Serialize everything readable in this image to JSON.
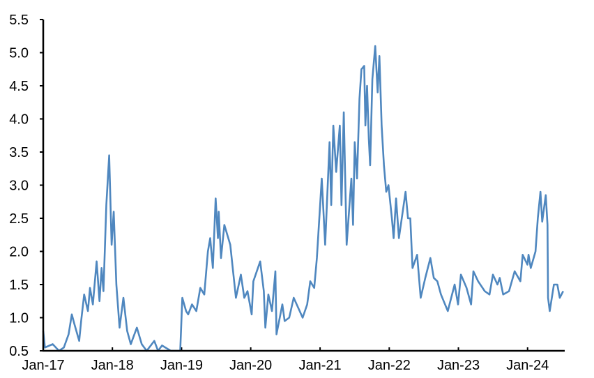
{
  "chart_data": {
    "type": "line",
    "title": "",
    "xlabel": "",
    "ylabel": "",
    "ylim": [
      0.5,
      5.5
    ],
    "xlim": [
      "2017-01-01",
      "2024-07-15"
    ],
    "grid": false,
    "legend": "none",
    "yticks": [
      "0.5",
      "1.0",
      "1.5",
      "2.0",
      "2.5",
      "3.0",
      "3.5",
      "4.0",
      "4.5",
      "5.0",
      "5.5"
    ],
    "xticks": [
      {
        "date": "2017-01-01",
        "label": "Jan-17"
      },
      {
        "date": "2018-01-01",
        "label": "Jan-18"
      },
      {
        "date": "2019-01-01",
        "label": "Jan-19"
      },
      {
        "date": "2020-01-01",
        "label": "Jan-20"
      },
      {
        "date": "2021-01-01",
        "label": "Jan-21"
      },
      {
        "date": "2022-01-01",
        "label": "Jan-22"
      },
      {
        "date": "2023-01-01",
        "label": "Jan-23"
      },
      {
        "date": "2024-01-01",
        "label": "Jan-24"
      }
    ],
    "colors": {
      "series": "#4f87bf",
      "axis": "#000000"
    },
    "series": [
      {
        "points": [
          [
            "2017-01-01",
            0.8
          ],
          [
            "2017-01-10",
            0.55
          ],
          [
            "2017-02-20",
            0.6
          ],
          [
            "2017-03-25",
            0.5
          ],
          [
            "2017-04-20",
            0.55
          ],
          [
            "2017-05-15",
            0.75
          ],
          [
            "2017-06-01",
            1.05
          ],
          [
            "2017-06-15",
            0.9
          ],
          [
            "2017-07-10",
            0.65
          ],
          [
            "2017-07-20",
            0.95
          ],
          [
            "2017-08-05",
            1.35
          ],
          [
            "2017-08-25",
            1.1
          ],
          [
            "2017-09-05",
            1.45
          ],
          [
            "2017-09-20",
            1.2
          ],
          [
            "2017-10-10",
            1.85
          ],
          [
            "2017-10-25",
            1.25
          ],
          [
            "2017-11-05",
            1.75
          ],
          [
            "2017-11-15",
            1.4
          ],
          [
            "2017-11-30",
            2.7
          ],
          [
            "2017-12-15",
            3.45
          ],
          [
            "2017-12-28",
            2.1
          ],
          [
            "2018-01-08",
            2.6
          ],
          [
            "2018-01-22",
            1.5
          ],
          [
            "2018-02-08",
            0.85
          ],
          [
            "2018-02-28",
            1.3
          ],
          [
            "2018-03-20",
            0.8
          ],
          [
            "2018-04-08",
            0.6
          ],
          [
            "2018-05-10",
            0.85
          ],
          [
            "2018-06-05",
            0.6
          ],
          [
            "2018-07-01",
            0.5
          ],
          [
            "2018-08-10",
            0.65
          ],
          [
            "2018-08-30",
            0.5
          ],
          [
            "2018-09-20",
            0.58
          ],
          [
            "2018-11-05",
            0.5
          ],
          [
            "2018-12-25",
            0.5
          ],
          [
            "2019-01-05",
            1.3
          ],
          [
            "2019-01-25",
            1.1
          ],
          [
            "2019-02-05",
            1.05
          ],
          [
            "2019-02-25",
            1.2
          ],
          [
            "2019-03-20",
            1.1
          ],
          [
            "2019-04-10",
            1.45
          ],
          [
            "2019-05-01",
            1.35
          ],
          [
            "2019-05-20",
            2.0
          ],
          [
            "2019-06-01",
            2.2
          ],
          [
            "2019-06-15",
            1.75
          ],
          [
            "2019-06-30",
            2.8
          ],
          [
            "2019-07-12",
            2.2
          ],
          [
            "2019-07-16",
            2.6
          ],
          [
            "2019-07-28",
            1.9
          ],
          [
            "2019-08-15",
            2.4
          ],
          [
            "2019-09-15",
            2.1
          ],
          [
            "2019-09-28",
            1.75
          ],
          [
            "2019-10-15",
            1.3
          ],
          [
            "2019-11-10",
            1.65
          ],
          [
            "2019-11-28",
            1.3
          ],
          [
            "2019-12-15",
            1.4
          ],
          [
            "2020-01-06",
            1.05
          ],
          [
            "2020-01-15",
            1.55
          ],
          [
            "2020-02-20",
            1.85
          ],
          [
            "2020-03-10",
            1.4
          ],
          [
            "2020-03-18",
            0.85
          ],
          [
            "2020-04-03",
            1.35
          ],
          [
            "2020-04-22",
            1.1
          ],
          [
            "2020-05-10",
            1.7
          ],
          [
            "2020-05-16",
            0.75
          ],
          [
            "2020-06-16",
            1.2
          ],
          [
            "2020-06-28",
            0.95
          ],
          [
            "2020-07-22",
            1.0
          ],
          [
            "2020-08-15",
            1.3
          ],
          [
            "2020-10-01",
            1.0
          ],
          [
            "2020-10-25",
            1.2
          ],
          [
            "2020-11-10",
            1.55
          ],
          [
            "2020-12-01",
            1.45
          ],
          [
            "2020-12-15",
            1.9
          ],
          [
            "2021-01-10",
            3.1
          ],
          [
            "2021-01-28",
            2.1
          ],
          [
            "2021-02-20",
            3.65
          ],
          [
            "2021-03-01",
            2.7
          ],
          [
            "2021-03-12",
            3.9
          ],
          [
            "2021-03-27",
            3.2
          ],
          [
            "2021-04-15",
            3.9
          ],
          [
            "2021-04-24",
            2.7
          ],
          [
            "2021-05-06",
            4.1
          ],
          [
            "2021-05-21",
            2.1
          ],
          [
            "2021-06-15",
            3.1
          ],
          [
            "2021-06-24",
            2.4
          ],
          [
            "2021-07-03",
            3.65
          ],
          [
            "2021-07-15",
            3.1
          ],
          [
            "2021-07-28",
            4.3
          ],
          [
            "2021-08-07",
            4.75
          ],
          [
            "2021-08-22",
            4.8
          ],
          [
            "2021-08-28",
            3.9
          ],
          [
            "2021-09-06",
            4.5
          ],
          [
            "2021-09-15",
            3.7
          ],
          [
            "2021-09-22",
            3.3
          ],
          [
            "2021-10-04",
            4.6
          ],
          [
            "2021-10-19",
            5.1
          ],
          [
            "2021-11-01",
            4.4
          ],
          [
            "2021-11-10",
            4.95
          ],
          [
            "2021-11-22",
            3.9
          ],
          [
            "2021-12-04",
            3.3
          ],
          [
            "2021-12-16",
            2.9
          ],
          [
            "2021-12-28",
            3.0
          ],
          [
            "2022-01-15",
            2.5
          ],
          [
            "2022-01-24",
            2.2
          ],
          [
            "2022-02-06",
            2.8
          ],
          [
            "2022-02-21",
            2.2
          ],
          [
            "2022-03-28",
            2.9
          ],
          [
            "2022-04-10",
            2.5
          ],
          [
            "2022-04-22",
            2.5
          ],
          [
            "2022-05-04",
            1.75
          ],
          [
            "2022-05-28",
            1.95
          ],
          [
            "2022-06-16",
            1.3
          ],
          [
            "2022-07-10",
            1.6
          ],
          [
            "2022-08-06",
            1.9
          ],
          [
            "2022-08-24",
            1.6
          ],
          [
            "2022-09-12",
            1.55
          ],
          [
            "2022-10-01",
            1.35
          ],
          [
            "2022-11-06",
            1.1
          ],
          [
            "2022-12-12",
            1.5
          ],
          [
            "2022-12-30",
            1.2
          ],
          [
            "2023-01-14",
            1.65
          ],
          [
            "2023-02-13",
            1.45
          ],
          [
            "2023-03-09",
            1.2
          ],
          [
            "2023-03-21",
            1.7
          ],
          [
            "2023-04-15",
            1.55
          ],
          [
            "2023-05-20",
            1.4
          ],
          [
            "2023-06-14",
            1.35
          ],
          [
            "2023-07-02",
            1.65
          ],
          [
            "2023-07-26",
            1.5
          ],
          [
            "2023-08-07",
            1.6
          ],
          [
            "2023-08-25",
            1.35
          ],
          [
            "2023-09-25",
            1.4
          ],
          [
            "2023-10-25",
            1.7
          ],
          [
            "2023-11-24",
            1.55
          ],
          [
            "2023-12-06",
            1.95
          ],
          [
            "2023-12-31",
            1.8
          ],
          [
            "2024-01-06",
            1.95
          ],
          [
            "2024-01-18",
            1.75
          ],
          [
            "2024-02-12",
            2.0
          ],
          [
            "2024-02-24",
            2.5
          ],
          [
            "2024-03-09",
            2.9
          ],
          [
            "2024-03-18",
            2.45
          ],
          [
            "2024-04-06",
            2.85
          ],
          [
            "2024-04-15",
            2.4
          ],
          [
            "2024-04-18",
            1.3
          ],
          [
            "2024-04-27",
            1.1
          ],
          [
            "2024-05-19",
            1.5
          ],
          [
            "2024-06-06",
            1.5
          ],
          [
            "2024-06-19",
            1.3
          ],
          [
            "2024-07-07",
            1.4
          ]
        ]
      }
    ]
  }
}
